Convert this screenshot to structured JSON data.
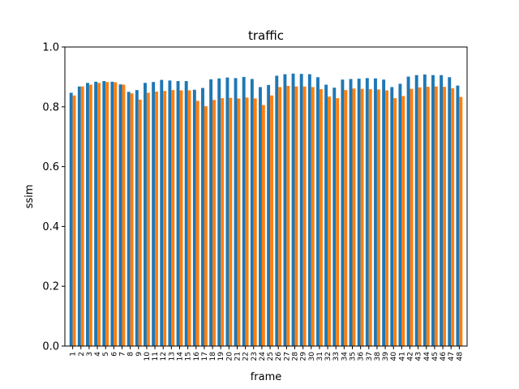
{
  "chart_data": {
    "type": "bar",
    "title": "traffic",
    "xlabel": "frame",
    "ylabel": "ssim",
    "ylim": [
      0.0,
      1.0
    ],
    "yticks": [
      "0.0",
      "0.2",
      "0.4",
      "0.6",
      "0.8",
      "1.0"
    ],
    "grid": false,
    "legend": "none",
    "categories": [
      "1",
      "2",
      "3",
      "4",
      "5",
      "6",
      "7",
      "8",
      "9",
      "10",
      "11",
      "12",
      "13",
      "14",
      "15",
      "16",
      "17",
      "18",
      "19",
      "20",
      "21",
      "22",
      "23",
      "24",
      "25",
      "26",
      "27",
      "28",
      "29",
      "30",
      "31",
      "32",
      "33",
      "34",
      "35",
      "36",
      "37",
      "38",
      "39",
      "40",
      "41",
      "42",
      "43",
      "44",
      "45",
      "46",
      "47",
      "48"
    ],
    "series": [
      {
        "color": "#1f77b4",
        "values": [
          0.847,
          0.868,
          0.88,
          0.884,
          0.886,
          0.884,
          0.875,
          0.85,
          0.856,
          0.88,
          0.883,
          0.89,
          0.888,
          0.886,
          0.886,
          0.857,
          0.863,
          0.892,
          0.895,
          0.898,
          0.896,
          0.9,
          0.893,
          0.866,
          0.873,
          0.904,
          0.909,
          0.911,
          0.91,
          0.909,
          0.899,
          0.874,
          0.864,
          0.891,
          0.893,
          0.894,
          0.896,
          0.895,
          0.891,
          0.866,
          0.877,
          0.901,
          0.906,
          0.908,
          0.906,
          0.906,
          0.899,
          0.871
        ]
      },
      {
        "color": "#ff7f0e",
        "values": [
          0.838,
          0.868,
          0.874,
          0.88,
          0.883,
          0.882,
          0.874,
          0.845,
          0.824,
          0.847,
          0.851,
          0.853,
          0.856,
          0.855,
          0.855,
          0.82,
          0.802,
          0.823,
          0.829,
          0.83,
          0.828,
          0.831,
          0.828,
          0.806,
          0.838,
          0.866,
          0.87,
          0.868,
          0.868,
          0.866,
          0.859,
          0.834,
          0.829,
          0.856,
          0.861,
          0.86,
          0.859,
          0.858,
          0.855,
          0.829,
          0.836,
          0.86,
          0.865,
          0.867,
          0.868,
          0.867,
          0.862,
          0.833
        ]
      }
    ]
  }
}
